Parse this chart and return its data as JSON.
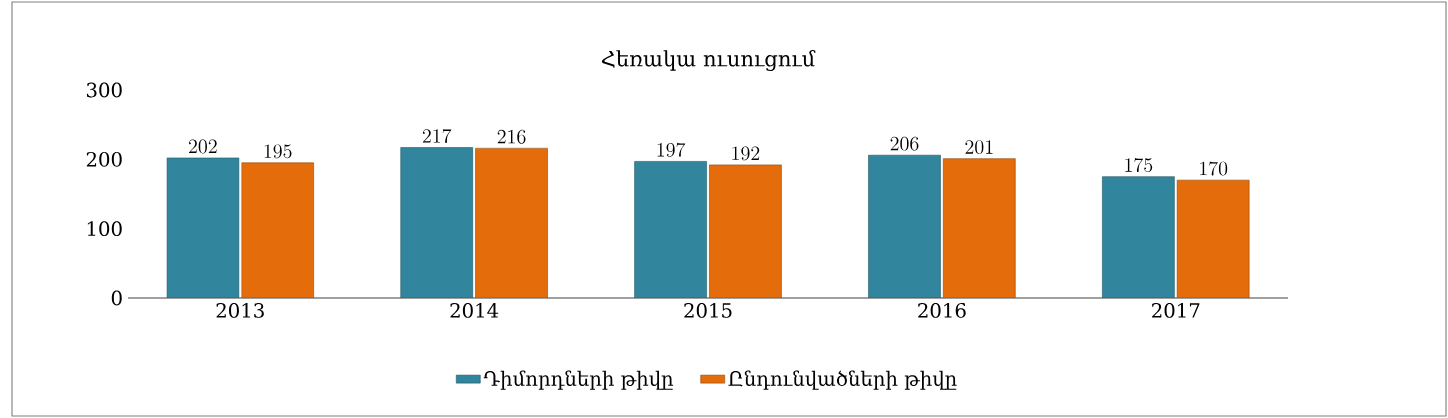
{
  "chart_data": {
    "type": "bar",
    "title": "Հեռակա ուսուցում",
    "categories": [
      "2013",
      "2014",
      "2015",
      "2016",
      "2017"
    ],
    "series": [
      {
        "name": "Դիմորդների թիվը",
        "color": "#31859c",
        "values": [
          202,
          217,
          197,
          206,
          175
        ]
      },
      {
        "name": "Ընդունվածների թիվը",
        "color": "#e46c0a",
        "values": [
          195,
          216,
          192,
          201,
          170
        ]
      }
    ],
    "ylim": [
      0,
      300
    ],
    "yticks": [
      0,
      100,
      200,
      300
    ],
    "data_labels": true,
    "legend": "bottom",
    "grid": false
  }
}
